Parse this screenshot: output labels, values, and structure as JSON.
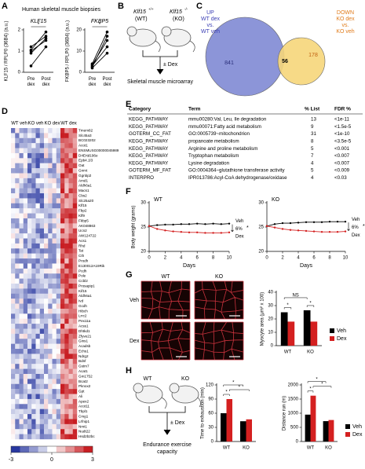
{
  "panel_labels": [
    "A",
    "B",
    "C",
    "D",
    "E",
    "F",
    "G",
    "H"
  ],
  "biopsy_title": "Human skeletal muscle biopsies",
  "diagram_b": {
    "wt_gene": "Klf15",
    "wt_sup": "+/+",
    "wt_sub": "(WT)",
    "ko_gene": "Klf15",
    "ko_sup": "-/-",
    "ko_sub": "(KO)",
    "treatment": "± Dex",
    "outcome": "Skeletal muscle microarray"
  },
  "venn": {
    "left_label": [
      "UP",
      "WT dex",
      "vs.",
      "WT veh"
    ],
    "right_label": [
      "DOWN",
      "KO dex",
      "vs.",
      "KO veh"
    ],
    "left_only": 841,
    "overlap": 56,
    "right_only": 178
  },
  "heatmap": {
    "columns": [
      "WT veh",
      "KO veh",
      "KO dex",
      "WT dex"
    ],
    "genes": [
      "Tmem82",
      "Slc45a3",
      "BC023202",
      "Acot1",
      "ENSMUSG00000045989",
      "D4Ertd196e",
      "Epb4.1l3",
      "Oat",
      "Gnmt",
      "Ggnbp2",
      "Amd1",
      "Aldh6a1",
      "Macs1",
      "Cbs2",
      "Slc25a20",
      "Klf15",
      "Fbp2",
      "Klf9",
      "Fkbp5",
      "AK048863",
      "Ucn2",
      "AW124722",
      "Acs1",
      "Rhd",
      "Tat",
      "Cth",
      "Prodh",
      "E130012A19Rik",
      "Pcdh",
      "Pole",
      "Ccbl2",
      "Prosapip1",
      "Kif15",
      "Aldh6a1",
      "Ivd",
      "Gcdh",
      "Hibch",
      "Lrrc2",
      "Pex11a",
      "Acss1",
      "Dhtkd1",
      "Zfyve21",
      "Gins1",
      "Acadsb",
      "Echs1",
      "Ndrg2",
      "Bdnf",
      "Gstm7",
      "Acat1",
      "Gm1752",
      "Bcat2",
      "Pknox2",
      "Gpt",
      "Ali",
      "Apex2",
      "Acot11",
      "Tbpl1",
      "Cmg1",
      "Lrfnip1",
      "Nmt1",
      "Nudt22",
      "Hsd2b2bc"
    ],
    "colorbar_ticks": [
      -3,
      0,
      3
    ],
    "colorbar_lim": [
      -3,
      3
    ]
  },
  "table": {
    "header": [
      "Category",
      "Term",
      "% List",
      "FDR %"
    ],
    "rows": [
      [
        "KEGG_PATHWAY",
        "mmu00280:Val, Leu, Ile degradation",
        13,
        "<1e-11"
      ],
      [
        "KEGG_PATHWAY",
        "mmu00071:Fatty acid metabolism",
        9,
        "<1.5e-5"
      ],
      [
        "GOTERM_CC_FAT",
        "GO:0005739~mitochondrion",
        31,
        "<1e-10"
      ],
      [
        "KEGG_PATHWAY",
        "propanoate metabolism",
        8,
        "<3.5e-5"
      ],
      [
        "KEGG_PATHWAY",
        "Arginine and proline metabolism",
        5,
        "<0.001"
      ],
      [
        "KEGG_PATHWAY",
        "Tryptophan metabolism",
        7,
        "<0.007"
      ],
      [
        "KEGG_PATHWAY",
        "Lysine degradation",
        4,
        "<0.007"
      ],
      [
        "GOTERM_MF_FAT",
        "GO:0004364~glutathione transferase activity",
        5,
        "<0.009"
      ],
      [
        "INTERPRO",
        "IPR013786:Acyl-CoA dehydrogenase/oxidase",
        4,
        "<0.03"
      ]
    ]
  },
  "micrographs": {
    "columns": [
      "WT",
      "KO"
    ],
    "rows": [
      "Veh",
      "Dex"
    ]
  },
  "diagram_h": {
    "wt": "WT",
    "ko": "KO",
    "treatment": "± Dex",
    "outcome": [
      "Endurance exercise",
      "capacity"
    ]
  },
  "chart_data": [
    {
      "type": "line",
      "title": "KLF15",
      "ylabel": "KLF15 / RPLP0 (36B4) (a.u.)",
      "categories": [
        "Pre dex",
        "Post dex"
      ],
      "color": "#000000",
      "series": [
        {
          "values": [
            0.3,
            1.2
          ]
        },
        {
          "values": [
            0.9,
            1.6
          ]
        },
        {
          "values": [
            1.0,
            1.5
          ]
        },
        {
          "values": [
            1.05,
            1.9
          ]
        },
        {
          "values": [
            1.2,
            1.7
          ]
        }
      ],
      "ylim": [
        0,
        2
      ],
      "yticks": [
        0,
        1,
        2
      ],
      "annotations": [
        "*"
      ]
    },
    {
      "type": "line",
      "title": "FKBP5",
      "ylabel": "FKBP5 / RPLP0 (36B4) (a.u.)",
      "categories": [
        "Pre dex",
        "Post dex"
      ],
      "color": "#000000",
      "series": [
        {
          "values": [
            2,
            9
          ]
        },
        {
          "values": [
            3,
            12
          ]
        },
        {
          "values": [
            3.5,
            15
          ]
        },
        {
          "values": [
            2.5,
            17
          ]
        },
        {
          "values": [
            4,
            19
          ]
        }
      ],
      "ylim": [
        0,
        20
      ],
      "yticks": [
        0,
        10,
        20
      ],
      "annotations": [
        "*"
      ]
    },
    {
      "type": "line",
      "title": "WT",
      "ylabel": "Body weight (grams)",
      "xlabel": "Days",
      "x": [
        0,
        1,
        2,
        3,
        4,
        5,
        6,
        7,
        8,
        9,
        10
      ],
      "xlim": [
        0,
        10
      ],
      "xticks": [
        0,
        2,
        4,
        6,
        8,
        10
      ],
      "series": [
        {
          "name": "Veh",
          "color": "#000000",
          "values": [
            25.2,
            25.4,
            25.5,
            25.5,
            25.6,
            25.6,
            25.7,
            25.6,
            25.7,
            25.6,
            25.7
          ]
        },
        {
          "name": "Dex",
          "color": "#d42020",
          "values": [
            25.2,
            24.6,
            24.3,
            24.1,
            24.0,
            23.9,
            23.9,
            23.8,
            23.8,
            23.8,
            23.9
          ]
        }
      ],
      "ylim": [
        20,
        30
      ],
      "yticks": [
        20,
        25,
        30
      ],
      "annotations": [
        "6%",
        "*"
      ]
    },
    {
      "type": "line",
      "title": "KO",
      "xlabel": "Days",
      "x": [
        0,
        1,
        2,
        3,
        4,
        5,
        6,
        7,
        8,
        9,
        10
      ],
      "xlim": [
        0,
        10
      ],
      "xticks": [
        0,
        2,
        4,
        6,
        8,
        10
      ],
      "series": [
        {
          "name": "Veh",
          "color": "#000000",
          "values": [
            25.2,
            25.6,
            25.8,
            25.8,
            25.9,
            26.0,
            26.0,
            26.0,
            26.1,
            26.1,
            26.1
          ]
        },
        {
          "name": "Dex",
          "color": "#d42020",
          "values": [
            25.2,
            24.9,
            24.6,
            24.4,
            24.3,
            24.2,
            24.1,
            24.0,
            24.0,
            24.0,
            24.1
          ]
        }
      ],
      "ylim": [
        20,
        30
      ],
      "yticks": [
        20,
        25,
        30
      ],
      "annotations": [
        "6%",
        "*"
      ]
    },
    {
      "type": "bar",
      "ylabel": "Myocyte area (μm² x 100)",
      "categories": [
        "WT",
        "KO"
      ],
      "series": [
        {
          "name": "Veh",
          "color": "#000000",
          "values": [
            25,
            26.5
          ]
        },
        {
          "name": "Dex",
          "color": "#d42020",
          "values": [
            18,
            18
          ]
        }
      ],
      "ylim": [
        0,
        40
      ],
      "yticks": [
        0,
        10,
        20,
        30,
        40
      ],
      "legend": "right",
      "annotations": [
        "*",
        "*",
        "NS"
      ]
    },
    {
      "type": "bar",
      "ylabel": "Time to exhaustion (min)",
      "categories": [
        "WT",
        "KO"
      ],
      "series": [
        {
          "name": "Veh",
          "color": "#000000",
          "values": [
            60,
            43
          ]
        },
        {
          "name": "Dex",
          "color": "#d42020",
          "values": [
            90,
            47
          ]
        }
      ],
      "ylim": [
        0,
        120
      ],
      "yticks": [
        0,
        30,
        60,
        90,
        120
      ],
      "annotations": [
        "*",
        "*",
        "*"
      ]
    },
    {
      "type": "bar",
      "ylabel": "Distance run (m)",
      "categories": [
        "WT",
        "KO"
      ],
      "series": [
        {
          "name": "Veh",
          "color": "#000000",
          "values": [
            950,
            720
          ]
        },
        {
          "name": "Dex",
          "color": "#d42020",
          "values": [
            1620,
            760
          ]
        }
      ],
      "ylim": [
        0,
        2000
      ],
      "yticks": [
        0,
        500,
        1000,
        1500,
        2000
      ],
      "legend": "right",
      "annotations": [
        "*",
        "*",
        "*"
      ]
    }
  ]
}
